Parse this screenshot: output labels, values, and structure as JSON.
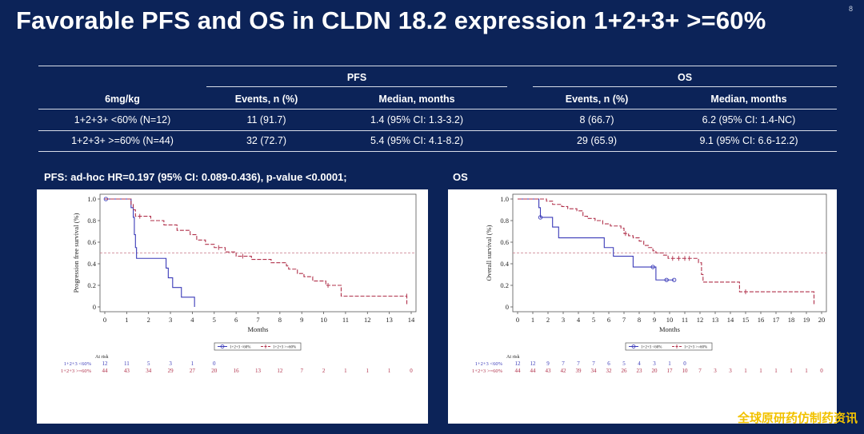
{
  "slide": {
    "title": "Favorable PFS and OS in CLDN 18.2 expression 1+2+3+ >=60%",
    "page_number": "8"
  },
  "table": {
    "group_pfs": "PFS",
    "group_os": "OS",
    "col_dose": "6mg/kg",
    "col_events": "Events, n (%)",
    "col_median": "Median, months",
    "rows": [
      {
        "group": "1+2+3+ <60% (N=12)",
        "pfs_events": "11 (91.7)",
        "pfs_median": "1.4 (95% CI: 1.3-3.2)",
        "os_events": "8 (66.7)",
        "os_median": "6.2 (95% CI: 1.4-NC)"
      },
      {
        "group": "1+2+3+ >=60% (N=44)",
        "pfs_events": "32 (72.7)",
        "pfs_median": "5.4 (95% CI: 4.1-8.2)",
        "os_events": "29 (65.9)",
        "os_median": "9.1 (95% CI: 6.6-12.2)"
      }
    ]
  },
  "pfs_section_title": "PFS: ad-hoc HR=0.197 (95% CI: 0.089-0.436), p-value <0.0001;",
  "os_section_title": "OS",
  "watermark": "全球原研药仿制药资讯",
  "chart_data": [
    {
      "type": "line",
      "subtype": "kaplan-meier",
      "ylabel": "Progression free survival (%)",
      "xlabel": "Months",
      "xlim": [
        0,
        14
      ],
      "ylim": [
        0,
        1
      ],
      "xticks": [
        0,
        1,
        2,
        3,
        4,
        5,
        6,
        7,
        8,
        9,
        10,
        11,
        12,
        13,
        14
      ],
      "yticks": [
        "0",
        "0.2",
        "0.4",
        "0.6",
        "0.8",
        "1.0"
      ],
      "reference_line_y": 0.5,
      "legend": {
        "position": "bottom-center",
        "entries": [
          "1+2+3 <60%",
          "1+2+3 >=60%"
        ]
      },
      "colors": {
        "lt60": "#3a3ab8",
        "ge60": "#b0304a"
      },
      "series": [
        {
          "name": "1+2+3 <60%",
          "points": [
            [
              0,
              1.0
            ],
            [
              1.1,
              1.0
            ],
            [
              1.2,
              0.92
            ],
            [
              1.3,
              0.83
            ],
            [
              1.35,
              0.67
            ],
            [
              1.4,
              0.55
            ],
            [
              1.45,
              0.45
            ],
            [
              2.8,
              0.45
            ],
            [
              2.8,
              0.36
            ],
            [
              2.9,
              0.27
            ],
            [
              3.1,
              0.18
            ],
            [
              3.5,
              0.18
            ],
            [
              3.5,
              0.09
            ],
            [
              4.1,
              0.09
            ],
            [
              4.1,
              0.0
            ]
          ],
          "censored": [
            [
              0.05,
              1.0
            ]
          ]
        },
        {
          "name": "1+2+3 >=60%",
          "points": [
            [
              0,
              1.0
            ],
            [
              1.1,
              1.0
            ],
            [
              1.2,
              0.95
            ],
            [
              1.3,
              0.9
            ],
            [
              1.4,
              0.84
            ],
            [
              2.0,
              0.84
            ],
            [
              2.1,
              0.8
            ],
            [
              2.6,
              0.8
            ],
            [
              2.7,
              0.76
            ],
            [
              3.2,
              0.76
            ],
            [
              3.3,
              0.71
            ],
            [
              3.8,
              0.71
            ],
            [
              3.9,
              0.67
            ],
            [
              4.1,
              0.67
            ],
            [
              4.2,
              0.62
            ],
            [
              4.5,
              0.62
            ],
            [
              4.6,
              0.58
            ],
            [
              4.9,
              0.58
            ],
            [
              5.0,
              0.55
            ],
            [
              5.4,
              0.55
            ],
            [
              5.5,
              0.51
            ],
            [
              5.9,
              0.51
            ],
            [
              6.0,
              0.47
            ],
            [
              6.6,
              0.47
            ],
            [
              6.7,
              0.44
            ],
            [
              7.5,
              0.44
            ],
            [
              7.6,
              0.41
            ],
            [
              8.2,
              0.41
            ],
            [
              8.3,
              0.38
            ],
            [
              8.4,
              0.35
            ],
            [
              8.7,
              0.35
            ],
            [
              8.8,
              0.31
            ],
            [
              9.0,
              0.31
            ],
            [
              9.1,
              0.28
            ],
            [
              9.4,
              0.28
            ],
            [
              9.5,
              0.24
            ],
            [
              10.0,
              0.24
            ],
            [
              10.1,
              0.2
            ],
            [
              10.7,
              0.2
            ],
            [
              10.8,
              0.1
            ],
            [
              13.8,
              0.1
            ],
            [
              13.8,
              0.02
            ]
          ],
          "censored": [
            [
              1.6,
              0.84
            ],
            [
              5.2,
              0.55
            ],
            [
              6.3,
              0.47
            ],
            [
              10.2,
              0.2
            ],
            [
              13.8,
              0.1
            ]
          ]
        }
      ],
      "at_risk": {
        "label": "At risk",
        "times": [
          0,
          1,
          2,
          3,
          4,
          5,
          6,
          7,
          8,
          9,
          10,
          11,
          12,
          13,
          14
        ],
        "rows": [
          {
            "name": "1+2+3 <60%",
            "values": [
              "12",
              "11",
              "5",
              "3",
              "1",
              "0",
              "",
              "",
              "",
              "",
              "",
              "",
              "",
              "",
              ""
            ]
          },
          {
            "name": "1+2+3 >=60%",
            "values": [
              "44",
              "43",
              "34",
              "29",
              "27",
              "20",
              "16",
              "13",
              "12",
              "7",
              "2",
              "1",
              "1",
              "1",
              "0"
            ]
          }
        ]
      }
    },
    {
      "type": "line",
      "subtype": "kaplan-meier",
      "ylabel": "Overall survival (%)",
      "xlabel": "Months",
      "xlim": [
        0,
        20
      ],
      "ylim": [
        0,
        1
      ],
      "xticks": [
        0,
        1,
        2,
        3,
        4,
        5,
        6,
        7,
        8,
        9,
        10,
        11,
        12,
        13,
        14,
        15,
        16,
        17,
        18,
        19,
        20
      ],
      "yticks": [
        "0",
        "0.2",
        "0.4",
        "0.6",
        "0.8",
        "1.0"
      ],
      "reference_line_y": 0.5,
      "legend": {
        "position": "bottom-center",
        "entries": [
          "1+2+3 <60%",
          "1+2+3 >=60%"
        ]
      },
      "colors": {
        "lt60": "#3a3ab8",
        "ge60": "#b0304a"
      },
      "series": [
        {
          "name": "1+2+3 <60%",
          "points": [
            [
              0,
              1.0
            ],
            [
              1.3,
              1.0
            ],
            [
              1.4,
              0.92
            ],
            [
              1.5,
              0.83
            ],
            [
              2.2,
              0.83
            ],
            [
              2.3,
              0.74
            ],
            [
              2.6,
              0.74
            ],
            [
              2.7,
              0.64
            ],
            [
              5.6,
              0.64
            ],
            [
              5.7,
              0.55
            ],
            [
              6.2,
              0.55
            ],
            [
              6.3,
              0.47
            ],
            [
              7.5,
              0.47
            ],
            [
              7.6,
              0.37
            ],
            [
              9.0,
              0.37
            ],
            [
              9.1,
              0.25
            ],
            [
              10.3,
              0.25
            ]
          ],
          "censored": [
            [
              1.5,
              0.83
            ],
            [
              8.9,
              0.37
            ],
            [
              9.8,
              0.25
            ],
            [
              10.3,
              0.25
            ]
          ]
        },
        {
          "name": "1+2+3 >=60%",
          "points": [
            [
              0,
              1.0
            ],
            [
              1.8,
              1.0
            ],
            [
              1.9,
              0.98
            ],
            [
              2.3,
              0.95
            ],
            [
              2.9,
              0.93
            ],
            [
              3.3,
              0.91
            ],
            [
              3.9,
              0.89
            ],
            [
              4.3,
              0.84
            ],
            [
              4.6,
              0.82
            ],
            [
              5.1,
              0.8
            ],
            [
              5.6,
              0.77
            ],
            [
              6.1,
              0.75
            ],
            [
              6.8,
              0.73
            ],
            [
              7.0,
              0.68
            ],
            [
              7.3,
              0.66
            ],
            [
              7.6,
              0.64
            ],
            [
              8.0,
              0.61
            ],
            [
              8.3,
              0.57
            ],
            [
              8.6,
              0.55
            ],
            [
              8.9,
              0.52
            ],
            [
              9.1,
              0.5
            ],
            [
              9.6,
              0.48
            ],
            [
              9.9,
              0.45
            ],
            [
              11.8,
              0.45
            ],
            [
              11.9,
              0.41
            ],
            [
              12.1,
              0.3
            ],
            [
              12.2,
              0.23
            ],
            [
              14.5,
              0.23
            ],
            [
              14.6,
              0.14
            ],
            [
              19.5,
              0.14
            ],
            [
              19.5,
              0.02
            ]
          ],
          "censored": [
            [
              7.1,
              0.68
            ],
            [
              10.2,
              0.45
            ],
            [
              10.6,
              0.45
            ],
            [
              11.0,
              0.45
            ],
            [
              11.3,
              0.45
            ],
            [
              15.0,
              0.14
            ]
          ]
        }
      ],
      "at_risk": {
        "label": "At risk",
        "times": [
          0,
          1,
          2,
          3,
          4,
          5,
          6,
          7,
          8,
          9,
          10,
          11,
          12,
          13,
          14,
          15,
          16,
          17,
          18,
          19,
          20
        ],
        "rows": [
          {
            "name": "1+2+3 <60%",
            "values": [
              "12",
              "12",
              "9",
              "7",
              "7",
              "7",
              "6",
              "5",
              "4",
              "3",
              "1",
              "0",
              "",
              "",
              "",
              "",
              "",
              "",
              "",
              "",
              ""
            ]
          },
          {
            "name": "1+2+3 >=60%",
            "values": [
              "44",
              "44",
              "43",
              "42",
              "39",
              "34",
              "32",
              "26",
              "23",
              "20",
              "17",
              "10",
              "7",
              "3",
              "3",
              "1",
              "1",
              "1",
              "1",
              "1",
              "0"
            ]
          }
        ]
      }
    }
  ]
}
